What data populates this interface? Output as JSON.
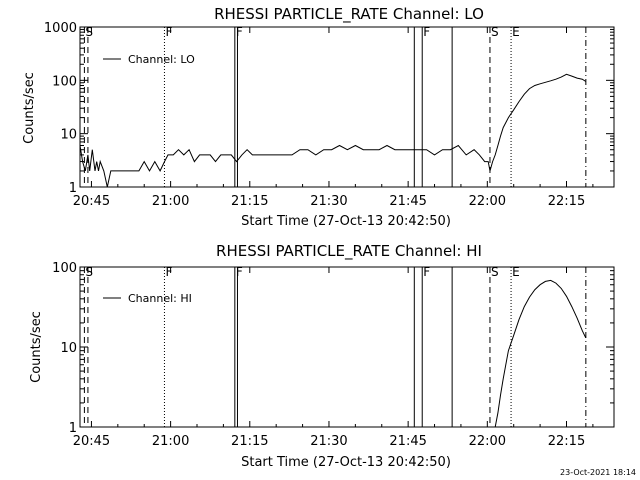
{
  "footer_timestamp": "23-Oct-2021 18:14",
  "chart_data": [
    {
      "type": "line",
      "title": "RHESSI PARTICLE_RATE Channel: LO",
      "xlabel": "Start Time (27-Oct-13 20:42:50)",
      "ylabel": "Counts/sec",
      "yscale": "log",
      "xlim": [
        "20:42:50",
        "22:24:00"
      ],
      "ylim": [
        1,
        1000
      ],
      "x_ticks": [
        "20:45",
        "21:00",
        "21:15",
        "21:30",
        "21:45",
        "22:00",
        "22:15"
      ],
      "y_ticks": [
        "1",
        "10",
        "100",
        "1000"
      ],
      "legend": {
        "position": "top-left",
        "entries": [
          "Channel: LO"
        ]
      },
      "grid": false,
      "markers": [
        {
          "label": "S",
          "time": "20:43:40",
          "style": "dashed"
        },
        {
          "label": "",
          "time": "20:44:20",
          "style": "dashed"
        },
        {
          "label": "F",
          "time": "20:58:50",
          "style": "dotted"
        },
        {
          "label": "F",
          "time": "21:12:10",
          "style": "solid"
        },
        {
          "label": "",
          "time": "21:12:40",
          "style": "solid"
        },
        {
          "label": "",
          "time": "21:46:10",
          "style": "solid"
        },
        {
          "label": "F",
          "time": "21:47:40",
          "style": "solid"
        },
        {
          "label": "",
          "time": "21:53:20",
          "style": "solid"
        },
        {
          "label": "S",
          "time": "22:00:30",
          "style": "dashed"
        },
        {
          "label": "E",
          "time": "22:04:30",
          "style": "dotted"
        },
        {
          "label": "",
          "time": "22:18:40",
          "style": "dashdot"
        }
      ],
      "series": [
        {
          "name": "Channel: LO",
          "x": [
            "20:42:50",
            "20:43:20",
            "20:43:50",
            "20:44:20",
            "20:44:40",
            "20:45:10",
            "20:45:40",
            "20:46:00",
            "20:46:20",
            "20:46:40",
            "20:47:20",
            "20:48:00",
            "20:48:40",
            "20:49:20",
            "20:50:00",
            "20:51:00",
            "20:52:00",
            "20:53:00",
            "20:54:00",
            "20:55:00",
            "20:56:00",
            "20:57:00",
            "20:58:00",
            "20:58:50",
            "20:59:30",
            "21:00:30",
            "21:01:30",
            "21:02:30",
            "21:03:30",
            "21:04:30",
            "21:05:30",
            "21:06:30",
            "21:07:30",
            "21:08:30",
            "21:09:30",
            "21:10:30",
            "21:11:30",
            "21:12:30",
            "21:13:30",
            "21:14:30",
            "21:15:30",
            "21:17:00",
            "21:18:30",
            "21:20:00",
            "21:21:30",
            "21:23:00",
            "21:24:30",
            "21:26:00",
            "21:27:30",
            "21:29:00",
            "21:30:30",
            "21:32:00",
            "21:33:30",
            "21:35:00",
            "21:36:30",
            "21:38:00",
            "21:39:30",
            "21:41:00",
            "21:42:30",
            "21:44:00",
            "21:45:30",
            "21:47:00",
            "21:48:30",
            "21:50:00",
            "21:51:30",
            "21:53:00",
            "21:54:30",
            "21:56:00",
            "21:57:30",
            "21:58:30",
            "21:59:30",
            "22:00:10",
            "22:00:30",
            "22:01:00",
            "22:01:30",
            "22:02:00",
            "22:02:30",
            "22:03:00",
            "22:04:00",
            "22:05:00",
            "22:06:00",
            "22:07:00",
            "22:08:00",
            "22:09:00",
            "22:10:00",
            "22:11:00",
            "22:12:00",
            "22:13:00",
            "22:14:00",
            "22:15:00",
            "22:16:00",
            "22:17:00",
            "22:18:00",
            "22:18:40"
          ],
          "y": [
            6,
            3,
            2,
            4,
            2,
            5,
            2,
            3,
            2,
            3,
            2,
            1,
            2,
            2,
            2,
            2,
            2,
            2,
            2,
            3,
            2,
            3,
            2,
            3,
            4,
            4,
            5,
            4,
            5,
            3,
            4,
            4,
            4,
            3,
            4,
            4,
            4,
            3,
            4,
            5,
            4,
            4,
            4,
            4,
            4,
            4,
            5,
            5,
            4,
            5,
            5,
            6,
            5,
            6,
            5,
            5,
            5,
            6,
            5,
            5,
            5,
            5,
            5,
            4,
            5,
            5,
            6,
            4,
            5,
            4,
            3,
            3,
            2,
            3,
            4,
            6,
            9,
            13,
            20,
            28,
            40,
            55,
            70,
            80,
            86,
            92,
            98,
            105,
            115,
            130,
            120,
            110,
            105,
            95
          ]
        }
      ]
    },
    {
      "type": "line",
      "title": "RHESSI PARTICLE_RATE Channel: HI",
      "xlabel": "Start Time (27-Oct-13 20:42:50)",
      "ylabel": "Counts/sec",
      "yscale": "log",
      "xlim": [
        "20:42:50",
        "22:24:00"
      ],
      "ylim": [
        1,
        100
      ],
      "x_ticks": [
        "20:45",
        "21:00",
        "21:15",
        "21:30",
        "21:45",
        "22:00",
        "22:15"
      ],
      "y_ticks": [
        "1",
        "10",
        "100"
      ],
      "legend": {
        "position": "top-left",
        "entries": [
          "Channel: HI"
        ]
      },
      "grid": false,
      "markers": [
        {
          "label": "S",
          "time": "20:43:40",
          "style": "dashed"
        },
        {
          "label": "",
          "time": "20:44:20",
          "style": "dashed"
        },
        {
          "label": "F",
          "time": "20:58:50",
          "style": "dotted"
        },
        {
          "label": "F",
          "time": "21:12:10",
          "style": "solid"
        },
        {
          "label": "",
          "time": "21:12:40",
          "style": "solid"
        },
        {
          "label": "",
          "time": "21:46:10",
          "style": "solid"
        },
        {
          "label": "F",
          "time": "21:47:40",
          "style": "solid"
        },
        {
          "label": "",
          "time": "21:53:20",
          "style": "solid"
        },
        {
          "label": "S",
          "time": "22:00:30",
          "style": "dashed"
        },
        {
          "label": "E",
          "time": "22:04:30",
          "style": "dotted"
        },
        {
          "label": "",
          "time": "22:18:40",
          "style": "dashdot"
        }
      ],
      "series": [
        {
          "name": "Channel: HI",
          "x": [
            "22:01:30",
            "22:02:00",
            "22:02:30",
            "22:03:00",
            "22:03:30",
            "22:04:00",
            "22:05:00",
            "22:06:00",
            "22:07:00",
            "22:08:00",
            "22:09:00",
            "22:10:00",
            "22:11:00",
            "22:12:00",
            "22:13:00",
            "22:14:00",
            "22:15:00",
            "22:16:00",
            "22:17:00",
            "22:18:00",
            "22:18:40"
          ],
          "y": [
            1.0,
            1.5,
            2.5,
            4,
            6,
            9,
            14,
            22,
            32,
            42,
            52,
            60,
            66,
            68,
            63,
            54,
            43,
            32,
            23,
            16,
            13
          ]
        }
      ]
    }
  ]
}
